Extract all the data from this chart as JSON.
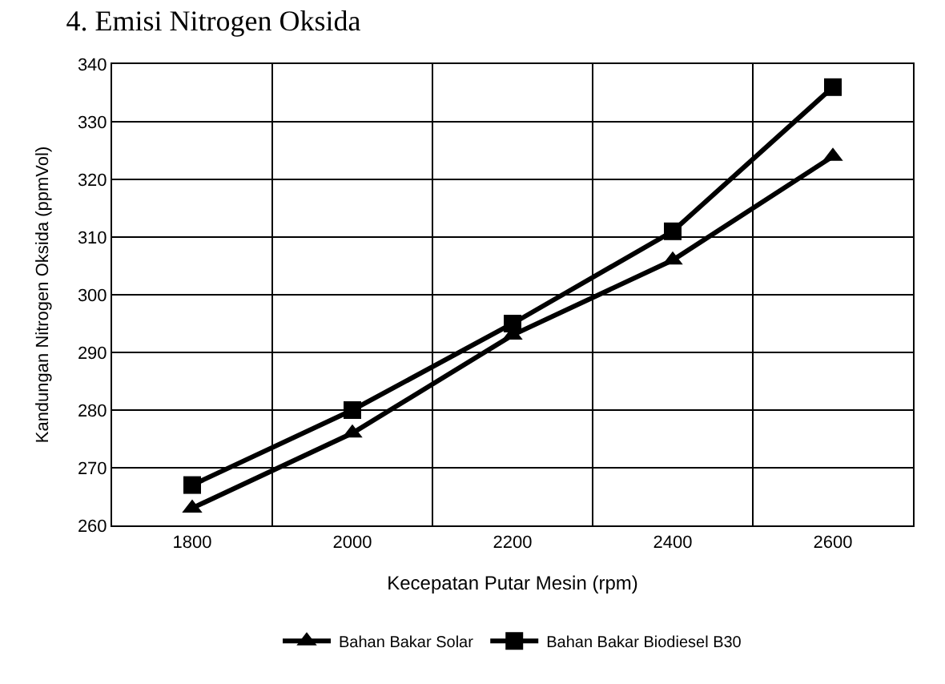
{
  "chart_data": {
    "type": "line",
    "title": "4. Emisi Nitrogen Oksida",
    "xlabel": "Kecepatan Putar Mesin (rpm)",
    "ylabel": "Kandungan Nitrogen Oksida (ppmVol)",
    "categories": [
      "1800",
      "2000",
      "2200",
      "2400",
      "2600"
    ],
    "series": [
      {
        "name": "Bahan Bakar Solar",
        "color": "#000000",
        "marker": "triangle",
        "values": [
          263,
          276,
          293,
          306,
          324
        ]
      },
      {
        "name": "Bahan Bakar Biodiesel B30",
        "color": "#000000",
        "marker": "square",
        "values": [
          267,
          280,
          295,
          311,
          336
        ]
      }
    ],
    "ylim": [
      260,
      340
    ],
    "yticks": [
      260,
      270,
      280,
      290,
      300,
      310,
      320,
      330,
      340
    ],
    "grid": true,
    "legend": "bottom",
    "line_style": "solid"
  }
}
